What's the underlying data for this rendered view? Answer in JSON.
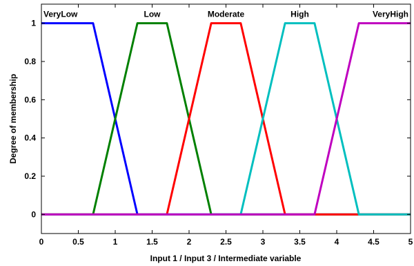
{
  "chart_data": {
    "type": "line",
    "title": "",
    "xlabel": "Input 1 / Input 3 / Intermediate variable",
    "ylabel": "Degree of membership",
    "xlim": [
      0,
      5
    ],
    "ylim": [
      -0.1,
      1.1
    ],
    "xticks": [
      "0",
      "0.5",
      "1",
      "1.5",
      "2",
      "2.5",
      "3",
      "3.5",
      "4",
      "4.5",
      "5"
    ],
    "yticks": [
      "0",
      "0.2",
      "0.4",
      "0.6",
      "0.8",
      "1"
    ],
    "grid": false,
    "series": [
      {
        "name": "VeryLow",
        "color": "#0000ff",
        "x": [
          0,
          0.7,
          1.3,
          5
        ],
        "y": [
          1,
          1,
          0,
          0
        ]
      },
      {
        "name": "Low",
        "color": "#008000",
        "x": [
          0,
          0.7,
          1.3,
          1.7,
          2.3,
          5
        ],
        "y": [
          0,
          0,
          1,
          1,
          0,
          0
        ]
      },
      {
        "name": "Moderate",
        "color": "#ff0000",
        "x": [
          0,
          1.7,
          2.3,
          2.7,
          3.3,
          5
        ],
        "y": [
          0,
          0,
          1,
          1,
          0,
          0
        ]
      },
      {
        "name": "High",
        "color": "#00bfbf",
        "x": [
          0,
          2.7,
          3.3,
          3.7,
          4.3,
          5
        ],
        "y": [
          0,
          0,
          1,
          1,
          0,
          0
        ]
      },
      {
        "name": "VeryHigh",
        "color": "#bf00bf",
        "x": [
          0,
          3.7,
          4.3,
          5
        ],
        "y": [
          0,
          0,
          1,
          1
        ]
      }
    ]
  }
}
